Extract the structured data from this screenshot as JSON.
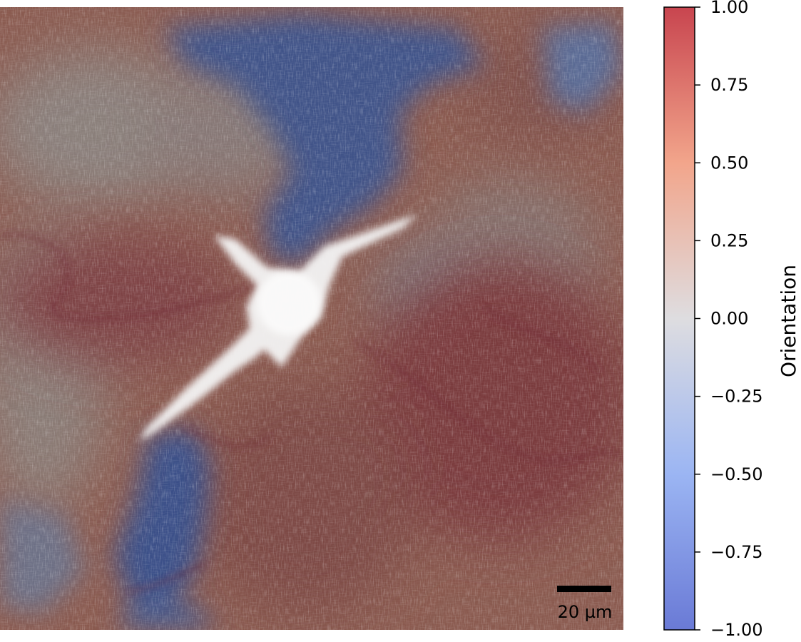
{
  "image": {
    "description_icon": "microscopy-orientation-map",
    "scale_bar": {
      "label": "20 µm"
    }
  },
  "colorbar": {
    "label": "Orientation",
    "colormap": "coolwarm",
    "colors": {
      "min": "#3b4cc0",
      "mid": "#dddddd",
      "max": "#b40426"
    },
    "range": [
      -1.0,
      1.0
    ],
    "ticks": [
      {
        "value": 1.0,
        "label": "1.00"
      },
      {
        "value": 0.75,
        "label": "0.75"
      },
      {
        "value": 0.5,
        "label": "0.50"
      },
      {
        "value": 0.25,
        "label": "0.25"
      },
      {
        "value": 0.0,
        "label": "0.00"
      },
      {
        "value": -0.25,
        "label": "−0.25"
      },
      {
        "value": -0.5,
        "label": "−0.50"
      },
      {
        "value": -0.75,
        "label": "−0.75"
      },
      {
        "value": -1.0,
        "label": "−1.00"
      }
    ]
  }
}
